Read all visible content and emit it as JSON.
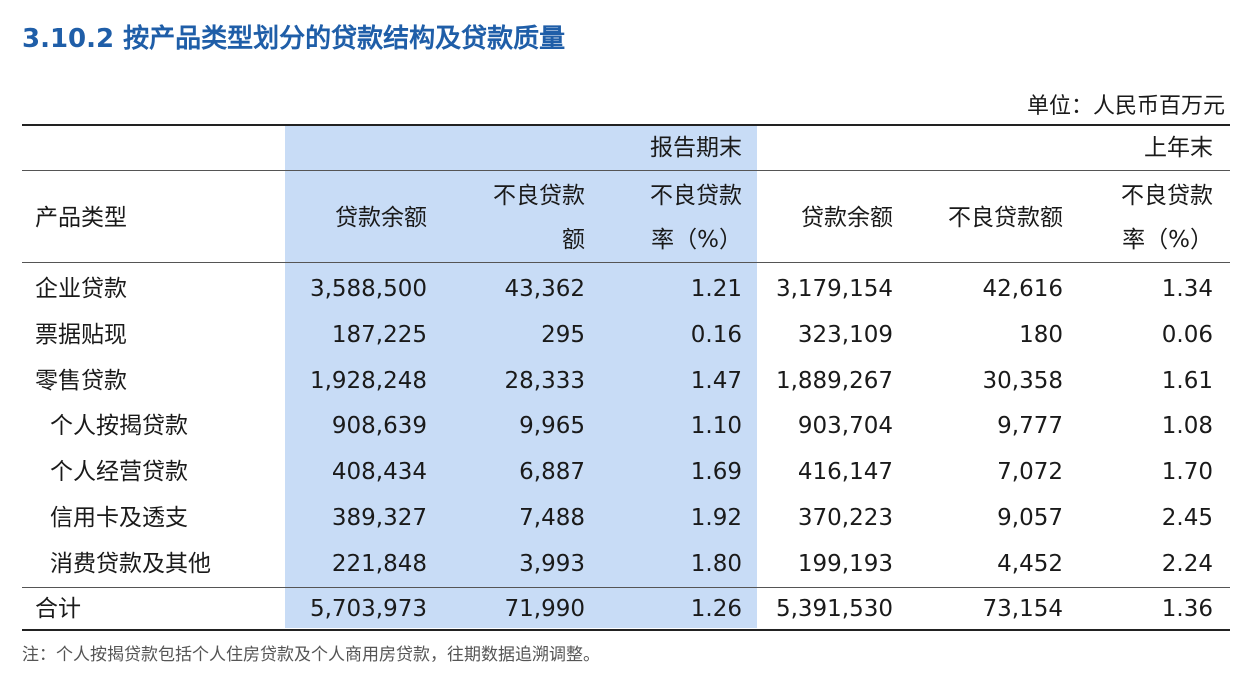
{
  "header": {
    "title": "3.10.2 按产品类型划分的贷款结构及贷款质量",
    "unit": "单位：人民币百万元"
  },
  "table": {
    "groups": [
      "报告期末",
      "上年末"
    ],
    "columns": [
      [
        "产品类型"
      ],
      [
        "贷款余额"
      ],
      [
        "不良贷款",
        "额"
      ],
      [
        "不良贷款",
        "率（%）"
      ],
      [
        "贷款余额"
      ],
      [
        "不良贷款额"
      ],
      [
        "不良贷款",
        "率（%）"
      ]
    ],
    "rows": [
      {
        "label": "企业贷款",
        "values": [
          "3,588,500",
          "43,362",
          "1.21",
          "3,179,154",
          "42,616",
          "1.34"
        ]
      },
      {
        "label": "票据贴现",
        "values": [
          "187,225",
          "295",
          "0.16",
          "323,109",
          "180",
          "0.06"
        ]
      },
      {
        "label": "零售贷款",
        "values": [
          "1,928,248",
          "28,333",
          "1.47",
          "1,889,267",
          "30,358",
          "1.61"
        ],
        "children": [
          {
            "label": "个人按揭贷款",
            "values": [
              "908,639",
              "9,965",
              "1.10",
              "903,704",
              "9,777",
              "1.08"
            ]
          },
          {
            "label": "个人经营贷款",
            "values": [
              "408,434",
              "6,887",
              "1.69",
              "416,147",
              "7,072",
              "1.70"
            ]
          },
          {
            "label": "信用卡及透支",
            "values": [
              "389,327",
              "7,488",
              "1.92",
              "370,223",
              "9,057",
              "2.45"
            ]
          },
          {
            "label": "消费贷款及其他",
            "values": [
              "221,848",
              "3,993",
              "1.80",
              "199,193",
              "4,452",
              "2.24"
            ]
          }
        ]
      }
    ],
    "total": {
      "label": "合计",
      "values": [
        "5,703,973",
        "71,990",
        "1.26",
        "5,391,530",
        "73,154",
        "1.36"
      ]
    }
  },
  "footnote": "注：个人按揭贷款包括个人住房贷款及个人商用房贷款，往期数据追溯调整。"
}
